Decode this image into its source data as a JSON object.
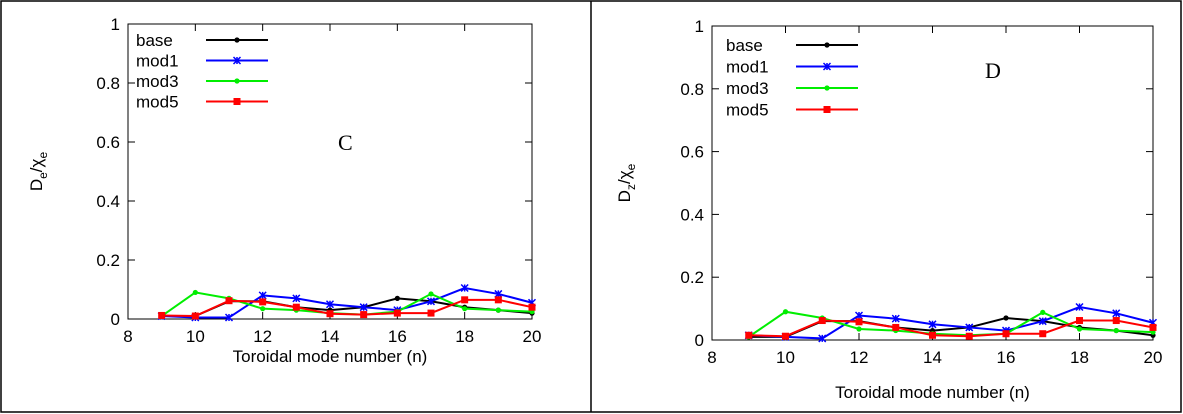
{
  "chart_data": [
    {
      "type": "line",
      "panel_label": "C",
      "title": "",
      "xlabel": "Toroidal mode number (n)",
      "ylabel_base": "D",
      "ylabel_sub": "e",
      "ylabel_mid": "/χ",
      "ylabel_sub2": "e",
      "xlim": [
        8,
        20
      ],
      "ylim": [
        0,
        1
      ],
      "xticks": [
        "8",
        "10",
        "12",
        "14",
        "16",
        "18",
        "20"
      ],
      "yticks": [
        "0",
        "0.2",
        "0.4",
        "0.6",
        "0.8",
        "1"
      ],
      "legend_position": "top-left",
      "grid": false,
      "x": [
        9,
        10,
        11,
        12,
        13,
        14,
        15,
        16,
        17,
        18,
        19,
        20
      ],
      "series": [
        {
          "name": "base",
          "color": "#000000",
          "marker": "dot",
          "values": [
            0.01,
            0.01,
            0.06,
            0.06,
            0.04,
            0.03,
            0.04,
            0.07,
            0.06,
            0.04,
            0.03,
            0.02
          ]
        },
        {
          "name": "mod1",
          "color": "#0000ff",
          "marker": "star",
          "values": [
            0.01,
            0.005,
            0.005,
            0.08,
            0.07,
            0.05,
            0.04,
            0.03,
            0.06,
            0.105,
            0.085,
            0.055
          ]
        },
        {
          "name": "mod3",
          "color": "#00ee00",
          "marker": "dot",
          "values": [
            0.01,
            0.09,
            0.07,
            0.035,
            0.03,
            0.02,
            0.015,
            0.025,
            0.085,
            0.035,
            0.03,
            0.025
          ]
        },
        {
          "name": "mod5",
          "color": "#ff0000",
          "marker": "square",
          "values": [
            0.012,
            0.01,
            0.062,
            0.058,
            0.04,
            0.018,
            0.015,
            0.02,
            0.02,
            0.065,
            0.065,
            0.04
          ]
        }
      ]
    },
    {
      "type": "line",
      "panel_label": "D",
      "title": "",
      "xlabel": "Toroidal mode number (n)",
      "ylabel_base": "D",
      "ylabel_sub": "z",
      "ylabel_mid": "/χ",
      "ylabel_sub2": "e",
      "xlim": [
        8,
        20
      ],
      "ylim": [
        0,
        1
      ],
      "xticks": [
        "8",
        "10",
        "12",
        "14",
        "16",
        "18",
        "20"
      ],
      "yticks": [
        "0",
        "0.2",
        "0.4",
        "0.6",
        "0.8",
        "1"
      ],
      "legend_position": "top-left",
      "grid": false,
      "x": [
        9,
        10,
        11,
        12,
        13,
        14,
        15,
        16,
        17,
        18,
        19,
        20
      ],
      "series": [
        {
          "name": "base",
          "color": "#000000",
          "marker": "dot",
          "values": [
            0.01,
            0.01,
            0.06,
            0.06,
            0.04,
            0.03,
            0.04,
            0.07,
            0.06,
            0.04,
            0.03,
            0.015
          ]
        },
        {
          "name": "mod1",
          "color": "#0000ff",
          "marker": "star",
          "values": [
            0.015,
            0.01,
            0.005,
            0.078,
            0.068,
            0.05,
            0.04,
            0.03,
            0.06,
            0.105,
            0.085,
            0.055
          ]
        },
        {
          "name": "mod3",
          "color": "#00ee00",
          "marker": "dot",
          "values": [
            0.01,
            0.09,
            0.07,
            0.035,
            0.03,
            0.02,
            0.015,
            0.02,
            0.088,
            0.035,
            0.03,
            0.025
          ]
        },
        {
          "name": "mod5",
          "color": "#ff0000",
          "marker": "square",
          "values": [
            0.015,
            0.012,
            0.062,
            0.058,
            0.04,
            0.015,
            0.012,
            0.02,
            0.02,
            0.062,
            0.062,
            0.04
          ]
        }
      ]
    }
  ]
}
